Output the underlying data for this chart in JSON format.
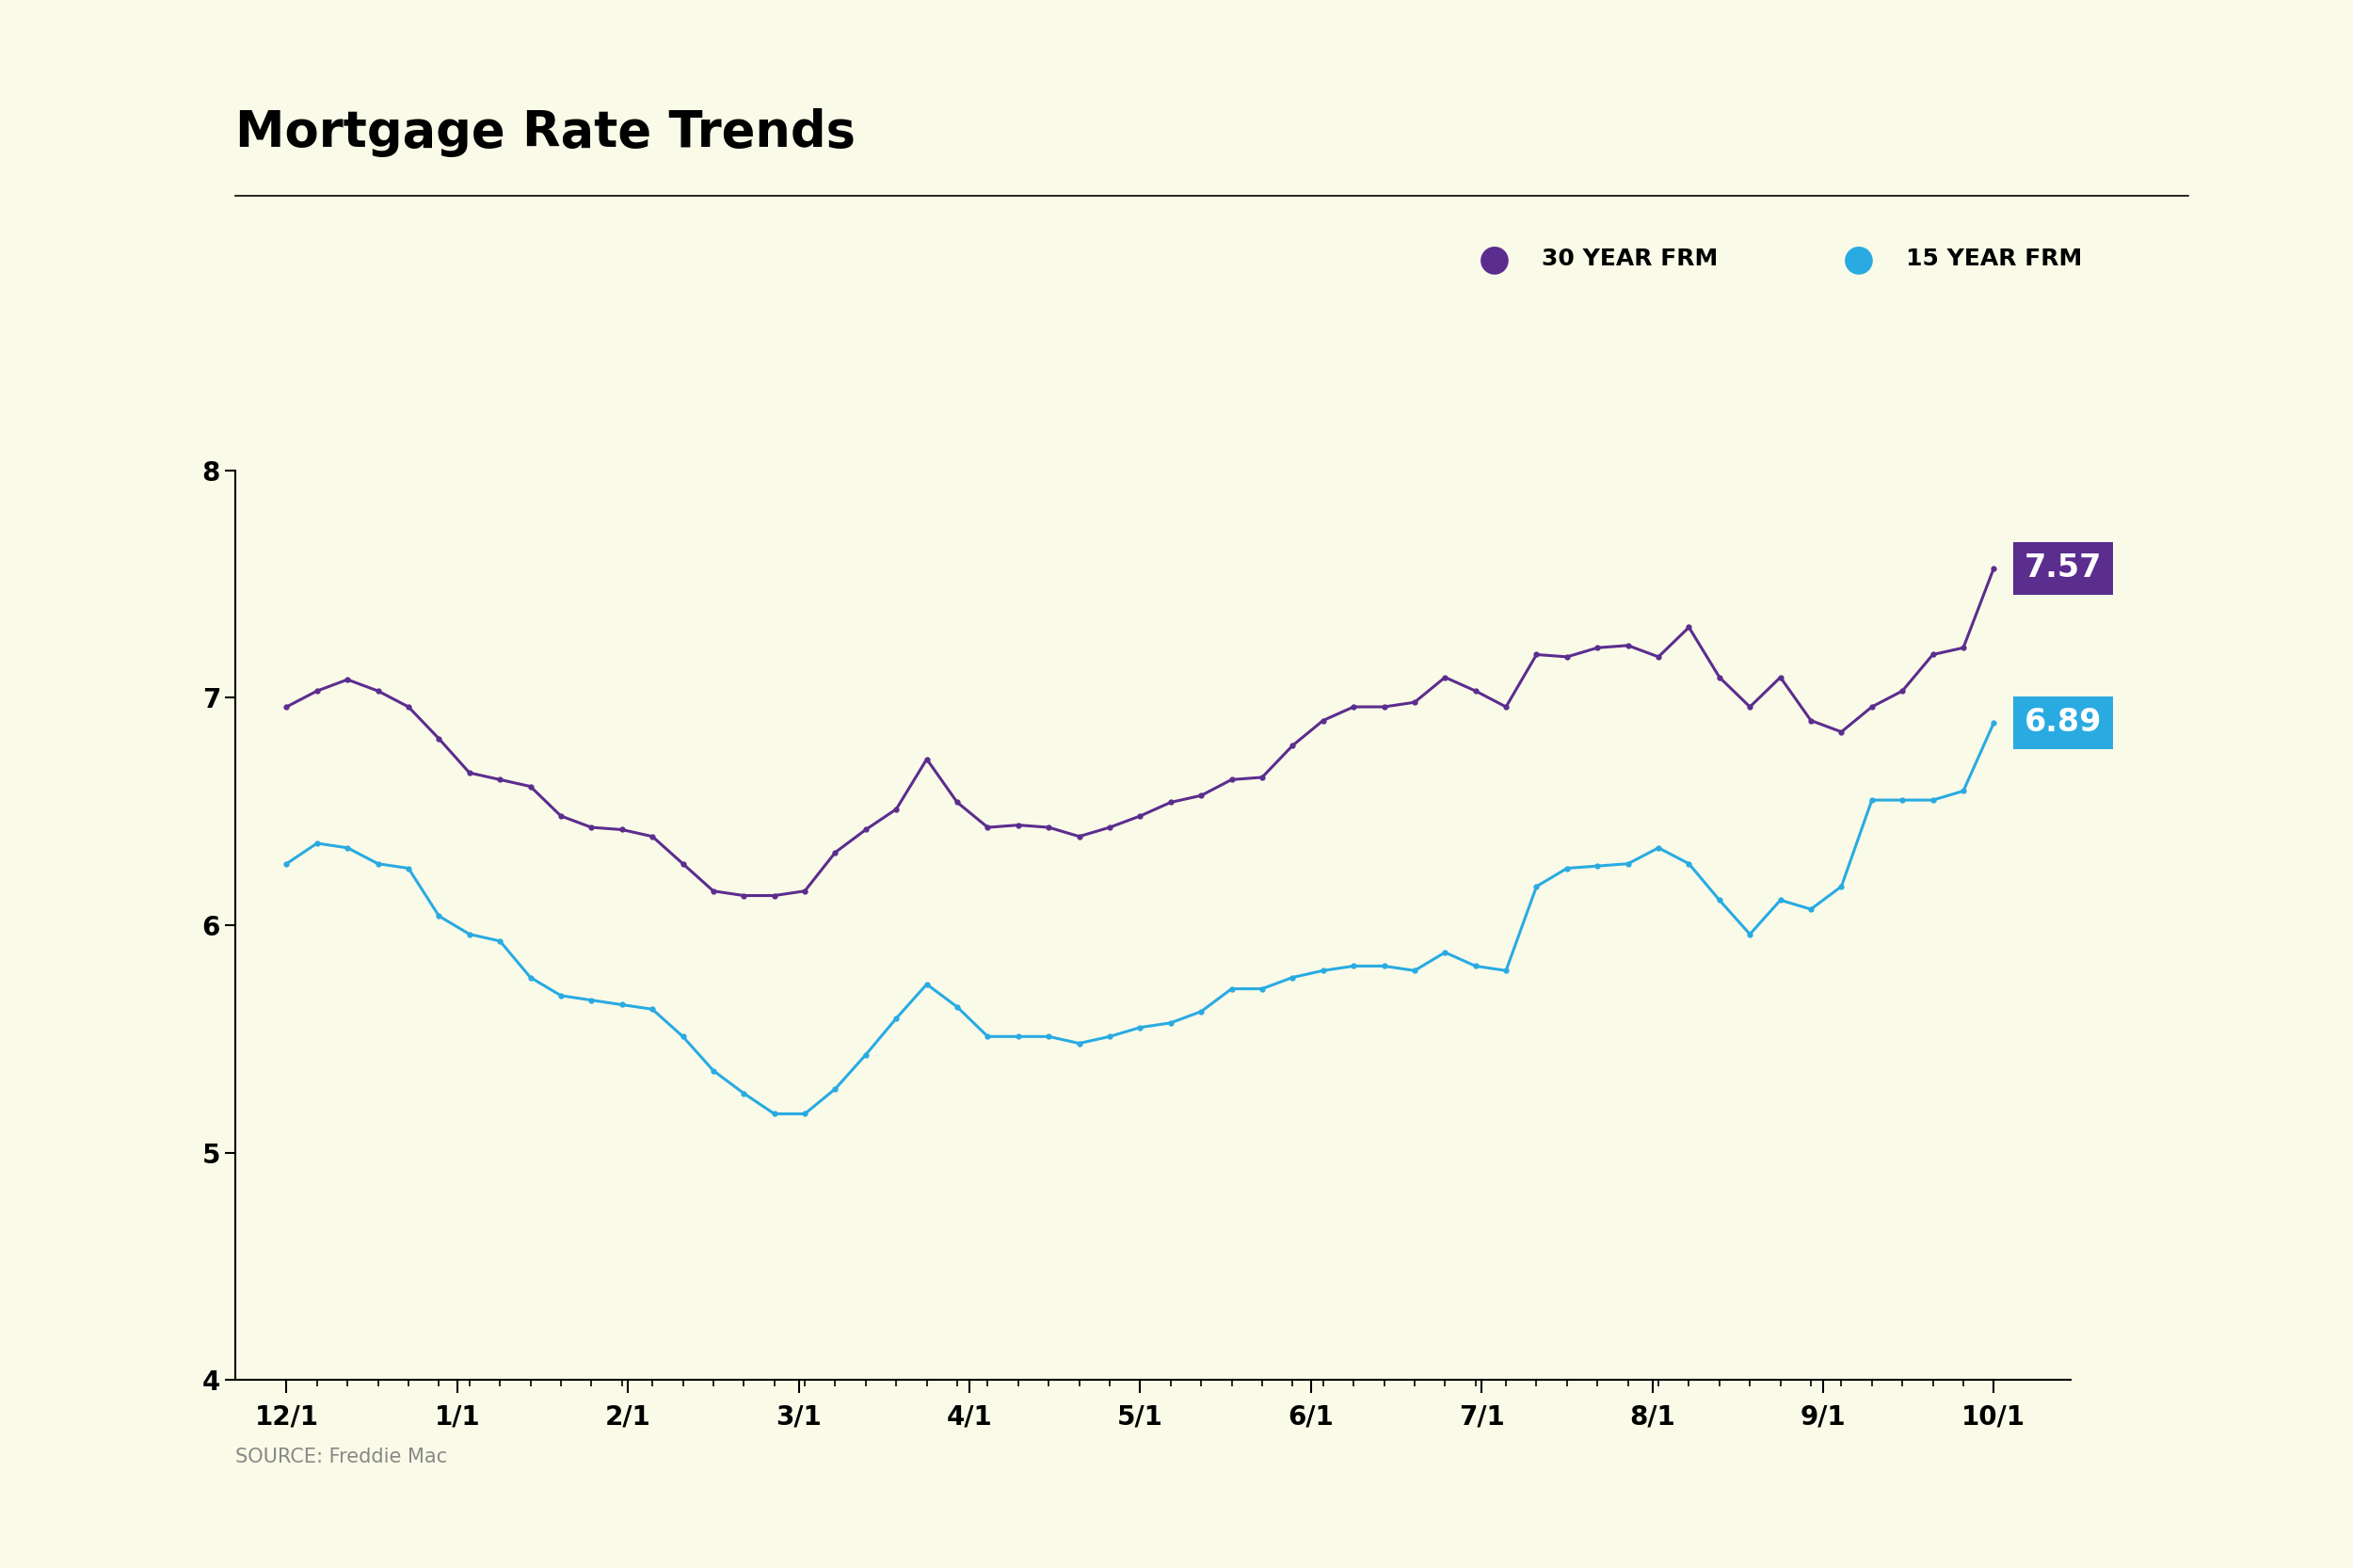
{
  "title": "Mortgage Rate Trends",
  "background_color": "#FAFAE8",
  "source_text": "SOURCE: Freddie Mac",
  "ylim": [
    4,
    8
  ],
  "yticks": [
    4,
    5,
    6,
    7,
    8
  ],
  "x_labels": [
    "12/1",
    "1/1",
    "2/1",
    "3/1",
    "4/1",
    "5/1",
    "6/1",
    "7/1",
    "8/1",
    "9/1",
    "10/1"
  ],
  "color_30yr": "#5B2D8E",
  "color_15yr": "#29ABE2",
  "label_30yr_value": "7.57",
  "label_15yr_value": "6.89",
  "label_30yr_bg": "#5B2D8E",
  "label_15yr_bg": "#29ABE2",
  "legend_label_30yr": "30 YEAR FRM",
  "legend_label_15yr": "15 YEAR FRM",
  "frm30": [
    6.96,
    7.03,
    7.08,
    7.03,
    6.96,
    6.82,
    6.67,
    6.64,
    6.61,
    6.48,
    6.43,
    6.42,
    6.39,
    6.27,
    6.15,
    6.13,
    6.13,
    6.15,
    6.32,
    6.42,
    6.51,
    6.73,
    6.54,
    6.43,
    6.44,
    6.43,
    6.39,
    6.43,
    6.48,
    6.54,
    6.57,
    6.64,
    6.65,
    6.79,
    6.9,
    6.96,
    6.96,
    6.98,
    7.09,
    7.03,
    6.96,
    7.19,
    7.18,
    7.22,
    7.23,
    7.18,
    7.31,
    7.09,
    6.96,
    7.09,
    6.9,
    6.85,
    6.96,
    7.03,
    7.19,
    7.22,
    7.57
  ],
  "frm15": [
    6.27,
    6.36,
    6.34,
    6.27,
    6.25,
    6.04,
    5.96,
    5.93,
    5.77,
    5.69,
    5.67,
    5.65,
    5.63,
    5.51,
    5.36,
    5.26,
    5.17,
    5.17,
    5.28,
    5.43,
    5.59,
    5.74,
    5.64,
    5.51,
    5.51,
    5.51,
    5.48,
    5.51,
    5.55,
    5.57,
    5.62,
    5.72,
    5.72,
    5.77,
    5.8,
    5.82,
    5.82,
    5.8,
    5.88,
    5.82,
    5.8,
    6.17,
    6.25,
    6.26,
    6.27,
    6.34,
    6.27,
    6.11,
    5.96,
    6.11,
    6.07,
    6.17,
    6.55,
    6.55,
    6.55,
    6.59,
    6.89
  ]
}
